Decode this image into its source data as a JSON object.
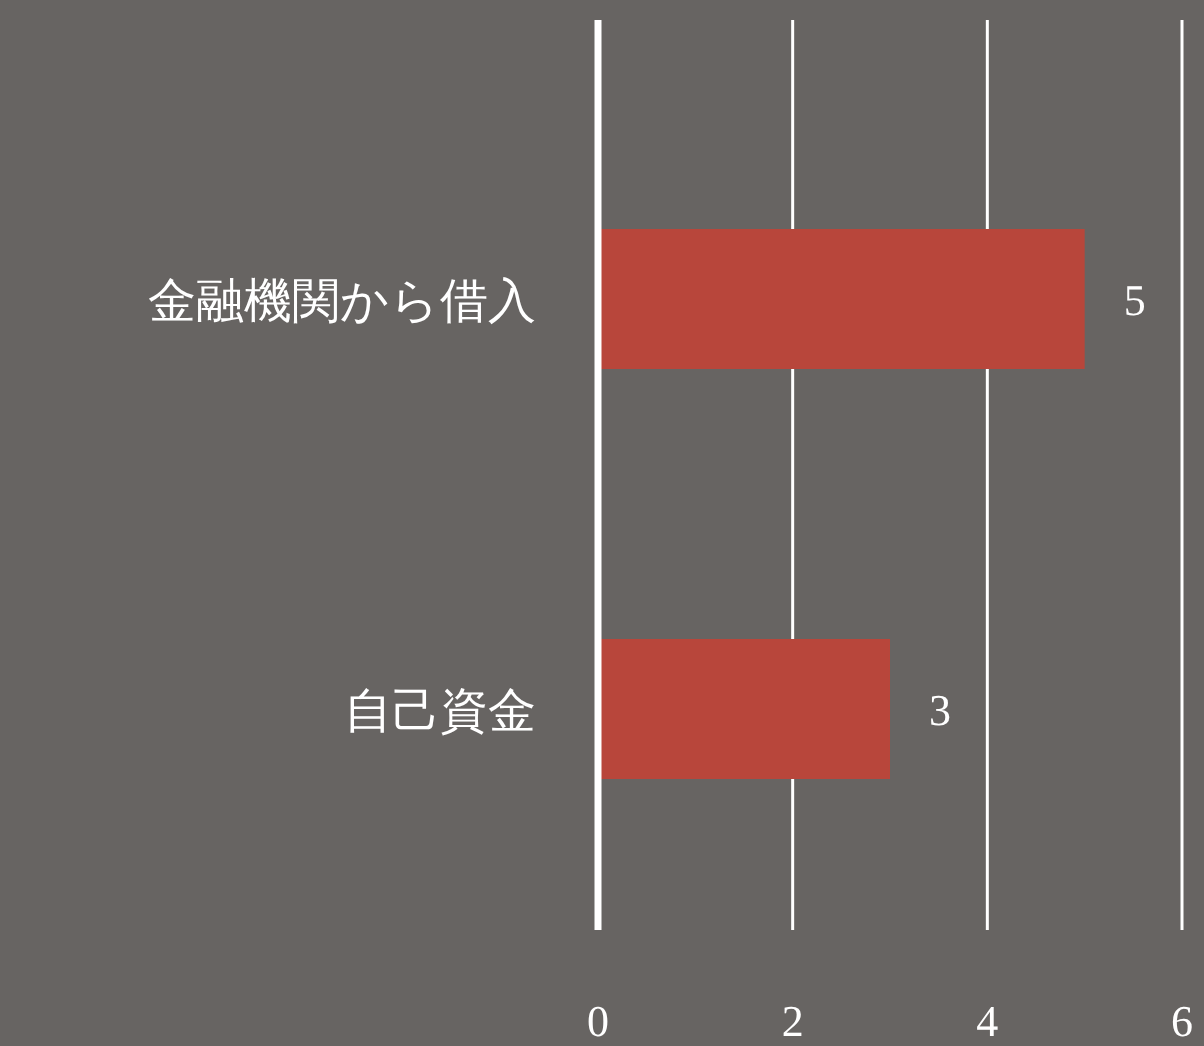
{
  "chart_data": {
    "type": "bar",
    "orientation": "horizontal",
    "categories": [
      "金融機関から借入",
      "自己資金"
    ],
    "values": [
      5,
      3
    ],
    "color": "#b8463b",
    "xlim": [
      0,
      6
    ],
    "xticks": [
      0,
      2,
      4,
      6
    ],
    "grid": "x",
    "data_labels": true
  }
}
